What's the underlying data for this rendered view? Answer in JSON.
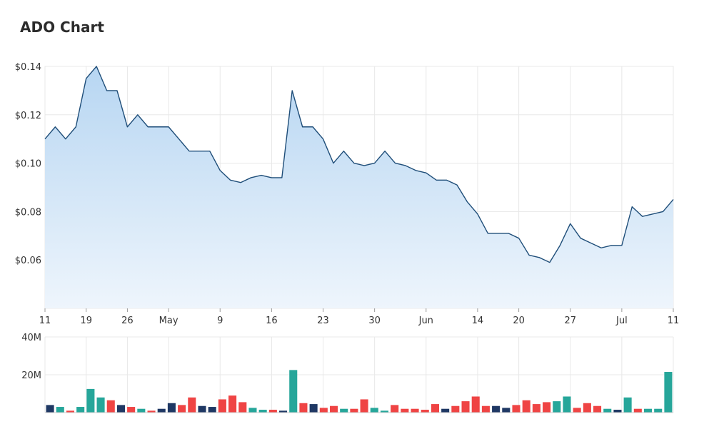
{
  "header": {
    "title": "ADO Chart"
  },
  "chart_data": [
    {
      "type": "area",
      "title": "ADO Chart",
      "xlabel": "",
      "ylabel": "",
      "grid": true,
      "y_tick_labels": [
        "$0.06",
        "$0.08",
        "$0.10",
        "$0.12",
        "$0.14"
      ],
      "y_ticks": [
        0.06,
        0.08,
        0.1,
        0.12,
        0.14
      ],
      "ylim": [
        0.04,
        0.14
      ],
      "x_tick_labels": [
        {
          "label": "11",
          "index": 0
        },
        {
          "label": "19",
          "index": 4
        },
        {
          "label": "26",
          "index": 8
        },
        {
          "label": "May",
          "index": 12
        },
        {
          "label": "9",
          "index": 17
        },
        {
          "label": "16",
          "index": 22
        },
        {
          "label": "23",
          "index": 27
        },
        {
          "label": "30",
          "index": 32
        },
        {
          "label": "Jun",
          "index": 37
        },
        {
          "label": "14",
          "index": 42
        },
        {
          "label": "20",
          "index": 46
        },
        {
          "label": "27",
          "index": 51
        },
        {
          "label": "Jul",
          "index": 56
        },
        {
          "label": "11",
          "index": 61
        }
      ],
      "values": [
        0.11,
        0.115,
        0.11,
        0.115,
        0.135,
        0.14,
        0.13,
        0.13,
        0.115,
        0.12,
        0.115,
        0.115,
        0.115,
        0.11,
        0.105,
        0.105,
        0.105,
        0.097,
        0.093,
        0.092,
        0.094,
        0.095,
        0.094,
        0.094,
        0.13,
        0.115,
        0.115,
        0.11,
        0.1,
        0.105,
        0.1,
        0.099,
        0.1,
        0.105,
        0.1,
        0.099,
        0.097,
        0.096,
        0.093,
        0.093,
        0.091,
        0.084,
        0.079,
        0.071,
        0.071,
        0.071,
        0.069,
        0.062,
        0.061,
        0.059,
        0.066,
        0.075,
        0.069,
        0.067,
        0.065,
        0.066,
        0.066,
        0.082,
        0.078,
        0.079,
        0.08,
        0.085
      ]
    },
    {
      "type": "bar",
      "title": "",
      "y_tick_labels": [
        "20M",
        "40M"
      ],
      "y_ticks": [
        20,
        40
      ],
      "ylim": [
        0,
        40
      ],
      "units": "M",
      "values": [
        4,
        3,
        1,
        3,
        12.5,
        8,
        6.5,
        4,
        3,
        2,
        1,
        2,
        5,
        4,
        8,
        3.5,
        3,
        7,
        9,
        5.5,
        2.5,
        1.5,
        1.5,
        1,
        22.5,
        5,
        4.5,
        2.5,
        3.5,
        2,
        2,
        7,
        2.5,
        1,
        4,
        2,
        2,
        1.5,
        4.5,
        2,
        3.5,
        6,
        8.5,
        3.5,
        3.5,
        2.5,
        4,
        6.5,
        4.5,
        5.5,
        6,
        8.5,
        2.5,
        5,
        3.5,
        2,
        1.5,
        8,
        2,
        2,
        2,
        21.5
      ],
      "colors": [
        "navy",
        "teal",
        "red",
        "teal",
        "teal",
        "teal",
        "red",
        "navy",
        "red",
        "teal",
        "red",
        "navy",
        "navy",
        "red",
        "red",
        "navy",
        "navy",
        "red",
        "red",
        "red",
        "teal",
        "teal",
        "red",
        "navy",
        "teal",
        "red",
        "navy",
        "red",
        "red",
        "teal",
        "red",
        "red",
        "teal",
        "teal",
        "red",
        "red",
        "red",
        "red",
        "red",
        "navy",
        "red",
        "red",
        "red",
        "red",
        "navy",
        "navy",
        "red",
        "red",
        "red",
        "red",
        "teal",
        "teal",
        "red",
        "red",
        "red",
        "teal",
        "navy",
        "teal",
        "red",
        "teal",
        "teal",
        "teal"
      ],
      "palette": {
        "navy": "#1f3864",
        "teal": "#26a69a",
        "red": "#ef4444"
      }
    }
  ],
  "style": {
    "line_color": "#1f4e79",
    "fill_top": "#b7d6f2",
    "fill_bottom": "#eef5fc",
    "grid_color": "#e8e8e8"
  }
}
